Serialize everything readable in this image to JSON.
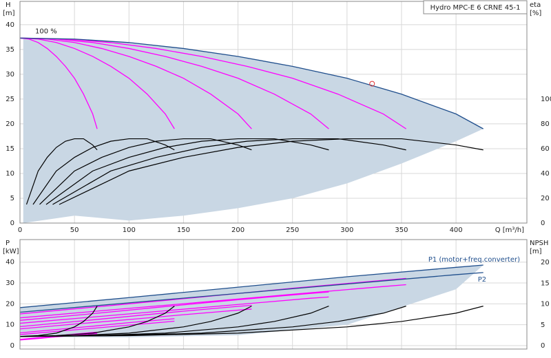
{
  "chart_data": [
    {
      "type": "line",
      "title": "Hydro MPC-E 6 CRNE 45-1",
      "x_label": "Q [m³/h]",
      "y_label": "H",
      "y_unit": "[m]",
      "y2_label": "eta",
      "y2_unit": "[%]",
      "annotation": "100 %",
      "xlim": [
        0,
        465
      ],
      "xticks": [
        0,
        50,
        100,
        150,
        200,
        250,
        300,
        350,
        400
      ],
      "ylim": [
        0,
        44.7
      ],
      "yticks": [
        0,
        5,
        10,
        15,
        20,
        25,
        30,
        35,
        40
      ],
      "y2lim": [
        0,
        178.8
      ],
      "y2ticks": [
        0,
        20,
        40,
        60,
        80,
        100
      ],
      "grid": true,
      "range": {
        "color": "#c9d7e4",
        "x": [
          3,
          50,
          100,
          150,
          200,
          250,
          300,
          350,
          400,
          425
        ],
        "high": [
          37.3,
          37.1,
          36.4,
          35.2,
          33.6,
          31.6,
          29.2,
          26.0,
          22.0,
          19.0
        ],
        "low": [
          0,
          1.5,
          0.5,
          1.5,
          3,
          5,
          8,
          12,
          16.5,
          19
        ]
      },
      "marker": {
        "x": 323,
        "y": 28.1,
        "color": "#e03030"
      },
      "series": [
        {
          "color": "#ff00ff",
          "x": [
            0,
            8.3,
            16.7,
            25,
            33.3,
            41.7,
            50,
            58.3,
            66.7,
            70.8
          ],
          "values": [
            37.3,
            37.1,
            36.4,
            35.2,
            33.6,
            31.6,
            29.2,
            26.0,
            22.0,
            19.0
          ]
        },
        {
          "color": "#ff00ff",
          "x": [
            0,
            16.7,
            33.3,
            50,
            66.7,
            83.3,
            100,
            116.7,
            133.3,
            141.7
          ],
          "values": [
            37.3,
            37.1,
            36.4,
            35.2,
            33.6,
            31.6,
            29.2,
            26.0,
            22.0,
            19.0
          ]
        },
        {
          "color": "#ff00ff",
          "x": [
            0,
            25,
            50,
            75,
            100,
            125,
            150,
            175,
            200,
            212.5
          ],
          "values": [
            37.3,
            37.1,
            36.4,
            35.2,
            33.6,
            31.6,
            29.2,
            26.0,
            22.0,
            19.0
          ]
        },
        {
          "color": "#ff00ff",
          "x": [
            0,
            33.3,
            66.7,
            100,
            133.3,
            166.7,
            200,
            233.3,
            266.7,
            283.3
          ],
          "values": [
            37.3,
            37.1,
            36.4,
            35.2,
            33.6,
            31.6,
            29.2,
            26.0,
            22.0,
            19.0
          ]
        },
        {
          "color": "#ff00ff",
          "x": [
            0,
            41.7,
            83.3,
            125,
            166.7,
            208.3,
            250,
            291.7,
            333.3,
            354.2
          ],
          "values": [
            37.3,
            37.1,
            36.4,
            35.2,
            33.6,
            31.6,
            29.2,
            26.0,
            22.0,
            19.0
          ]
        },
        {
          "color": "#1f4e8c",
          "x": [
            0,
            50,
            100,
            150,
            200,
            250,
            300,
            350,
            400,
            425
          ],
          "values": [
            37.3,
            37.1,
            36.4,
            35.2,
            33.6,
            31.6,
            29.2,
            26.0,
            22.0,
            19.0
          ]
        },
        {
          "color": "#000000",
          "axis": "y2",
          "x": [
            6,
            16.7,
            25,
            33.3,
            41.7,
            50,
            58.3,
            66.7,
            70.8
          ],
          "values": [
            15,
            42,
            53,
            61,
            66,
            68,
            68,
            63,
            59
          ]
        },
        {
          "color": "#000000",
          "axis": "y2",
          "x": [
            12,
            33.3,
            50,
            66.7,
            83.3,
            100,
            116.7,
            133.3,
            141.7
          ],
          "values": [
            15,
            42,
            53,
            61,
            66,
            68,
            68,
            63,
            59
          ]
        },
        {
          "color": "#000000",
          "axis": "y2",
          "x": [
            18,
            50,
            75,
            100,
            125,
            150,
            175,
            200,
            212.5
          ],
          "values": [
            15,
            42,
            53,
            61,
            66,
            68,
            68,
            63,
            59
          ]
        },
        {
          "color": "#000000",
          "axis": "y2",
          "x": [
            24,
            66.7,
            100,
            133.3,
            166.7,
            200,
            233.3,
            266.7,
            283.3
          ],
          "values": [
            15,
            42,
            53,
            61,
            66,
            68,
            68,
            63,
            59
          ]
        },
        {
          "color": "#000000",
          "axis": "y2",
          "x": [
            30,
            83.3,
            125,
            166.7,
            208.3,
            250,
            291.7,
            333.3,
            354.2
          ],
          "values": [
            15,
            42,
            53,
            61,
            66,
            68,
            68,
            63,
            59
          ]
        },
        {
          "color": "#000000",
          "axis": "y2",
          "x": [
            36,
            100,
            150,
            200,
            250,
            300,
            350,
            400,
            425
          ],
          "values": [
            15,
            42,
            53,
            61,
            66,
            68,
            68,
            63,
            59
          ]
        }
      ]
    },
    {
      "type": "line",
      "y_label": "P",
      "y_unit": "[kW]",
      "y2_label": "NPSH",
      "y2_unit": "[m]",
      "xlim": [
        0,
        465
      ],
      "xticks": [
        0,
        50,
        100,
        150,
        200,
        250,
        300,
        350,
        400
      ],
      "ylim": [
        -1.65,
        50.8
      ],
      "yticks": [
        0,
        10,
        20,
        30,
        40
      ],
      "y2lim": [
        -0.83,
        25.5
      ],
      "y2ticks": [
        0,
        5,
        10,
        15,
        20
      ],
      "grid": true,
      "range": {
        "color": "#c9d7e4",
        "x": [
          0,
          100,
          200,
          300,
          400,
          425
        ],
        "high": [
          18.2,
          23,
          28,
          33,
          37.5,
          38.6
        ],
        "low": [
          4,
          4,
          5,
          10,
          27,
          38.6
        ]
      },
      "series": [
        {
          "color": "#ff00ff",
          "x": [
            0,
            16.7,
            33.3,
            50,
            66.7,
            70.8
          ],
          "values": [
            3,
            3.8,
            4.7,
            5.5,
            6.3,
            6.4
          ]
        },
        {
          "color": "#ff00ff",
          "x": [
            0,
            33.3,
            66.7,
            100,
            133.3,
            141.7
          ],
          "values": [
            6.1,
            7.7,
            9.3,
            11,
            12.5,
            12.9
          ]
        },
        {
          "color": "#ff00ff",
          "x": [
            0,
            50,
            100,
            150,
            200,
            212.5
          ],
          "values": [
            9.1,
            11.5,
            14,
            16.5,
            18.8,
            19.3
          ]
        },
        {
          "color": "#ff00ff",
          "x": [
            0,
            66.7,
            133.3,
            200,
            266.7,
            283.3
          ],
          "values": [
            12.1,
            15.3,
            18.7,
            22,
            25,
            25.7
          ]
        },
        {
          "color": "#ff00ff",
          "x": [
            0,
            83.3,
            166.7,
            250,
            333.3,
            354.2
          ],
          "values": [
            15.2,
            19.2,
            23.3,
            27.5,
            31.3,
            32.2
          ]
        },
        {
          "color": "#ff00ff",
          "x": [
            0,
            16.7,
            33.3,
            50,
            66.7,
            70.8
          ],
          "values": [
            2.7,
            3.4,
            4.2,
            4.9,
            5.7,
            5.8
          ]
        },
        {
          "color": "#ff00ff",
          "x": [
            0,
            33.3,
            66.7,
            100,
            133.3,
            141.7
          ],
          "values": [
            5.3,
            6.8,
            8.3,
            9.8,
            11.3,
            11.7
          ]
        },
        {
          "color": "#ff00ff",
          "x": [
            0,
            50,
            100,
            150,
            200,
            212.5
          ],
          "values": [
            8,
            10.3,
            12.5,
            14.8,
            17,
            17.5
          ]
        },
        {
          "color": "#ff00ff",
          "x": [
            0,
            66.7,
            133.3,
            200,
            266.7,
            283.3
          ],
          "values": [
            10.7,
            13.7,
            16.7,
            19.7,
            22.7,
            23.3
          ]
        },
        {
          "color": "#ff00ff",
          "x": [
            0,
            83.3,
            166.7,
            250,
            333.3,
            354.2
          ],
          "values": [
            13.3,
            17.1,
            20.8,
            24.6,
            28.3,
            29.2
          ]
        },
        {
          "name": "P1 (motor+freq.converter)",
          "color": "#1f4e8c",
          "x": [
            0,
            100,
            200,
            300,
            400,
            425
          ],
          "values": [
            18.2,
            23,
            28,
            33,
            37.5,
            38.6
          ]
        },
        {
          "name": "P2",
          "color": "#1f4e8c",
          "x": [
            0,
            100,
            200,
            300,
            400,
            425
          ],
          "values": [
            16,
            20.5,
            25,
            29.5,
            34,
            35
          ]
        },
        {
          "color": "#000000",
          "axis": "y2",
          "x": [
            0,
            16.7,
            33.3,
            50,
            58.3,
            66.7,
            70.8
          ],
          "values": [
            2.2,
            2.4,
            3,
            4.5,
            5.8,
            7.8,
            9.5
          ]
        },
        {
          "color": "#000000",
          "axis": "y2",
          "x": [
            0,
            33.3,
            66.7,
            100,
            116.7,
            133.3,
            141.7
          ],
          "values": [
            2.2,
            2.4,
            3,
            4.5,
            5.8,
            7.8,
            9.5
          ]
        },
        {
          "color": "#000000",
          "axis": "y2",
          "x": [
            0,
            50,
            100,
            150,
            175,
            200,
            212.5
          ],
          "values": [
            2.2,
            2.4,
            3,
            4.5,
            5.8,
            7.8,
            9.5
          ]
        },
        {
          "color": "#000000",
          "axis": "y2",
          "x": [
            0,
            66.7,
            133.3,
            200,
            233.3,
            266.7,
            283.3
          ],
          "values": [
            2.2,
            2.4,
            3,
            4.5,
            5.8,
            7.8,
            9.5
          ]
        },
        {
          "color": "#000000",
          "axis": "y2",
          "x": [
            0,
            83.3,
            166.7,
            250,
            291.7,
            333.3,
            354.2
          ],
          "values": [
            2.2,
            2.4,
            3,
            4.5,
            5.8,
            7.8,
            9.5
          ]
        },
        {
          "color": "#000000",
          "axis": "y2",
          "x": [
            0,
            100,
            200,
            300,
            350,
            400,
            425
          ],
          "values": [
            2.2,
            2.4,
            3,
            4.5,
            5.8,
            7.8,
            9.5
          ]
        }
      ]
    }
  ]
}
